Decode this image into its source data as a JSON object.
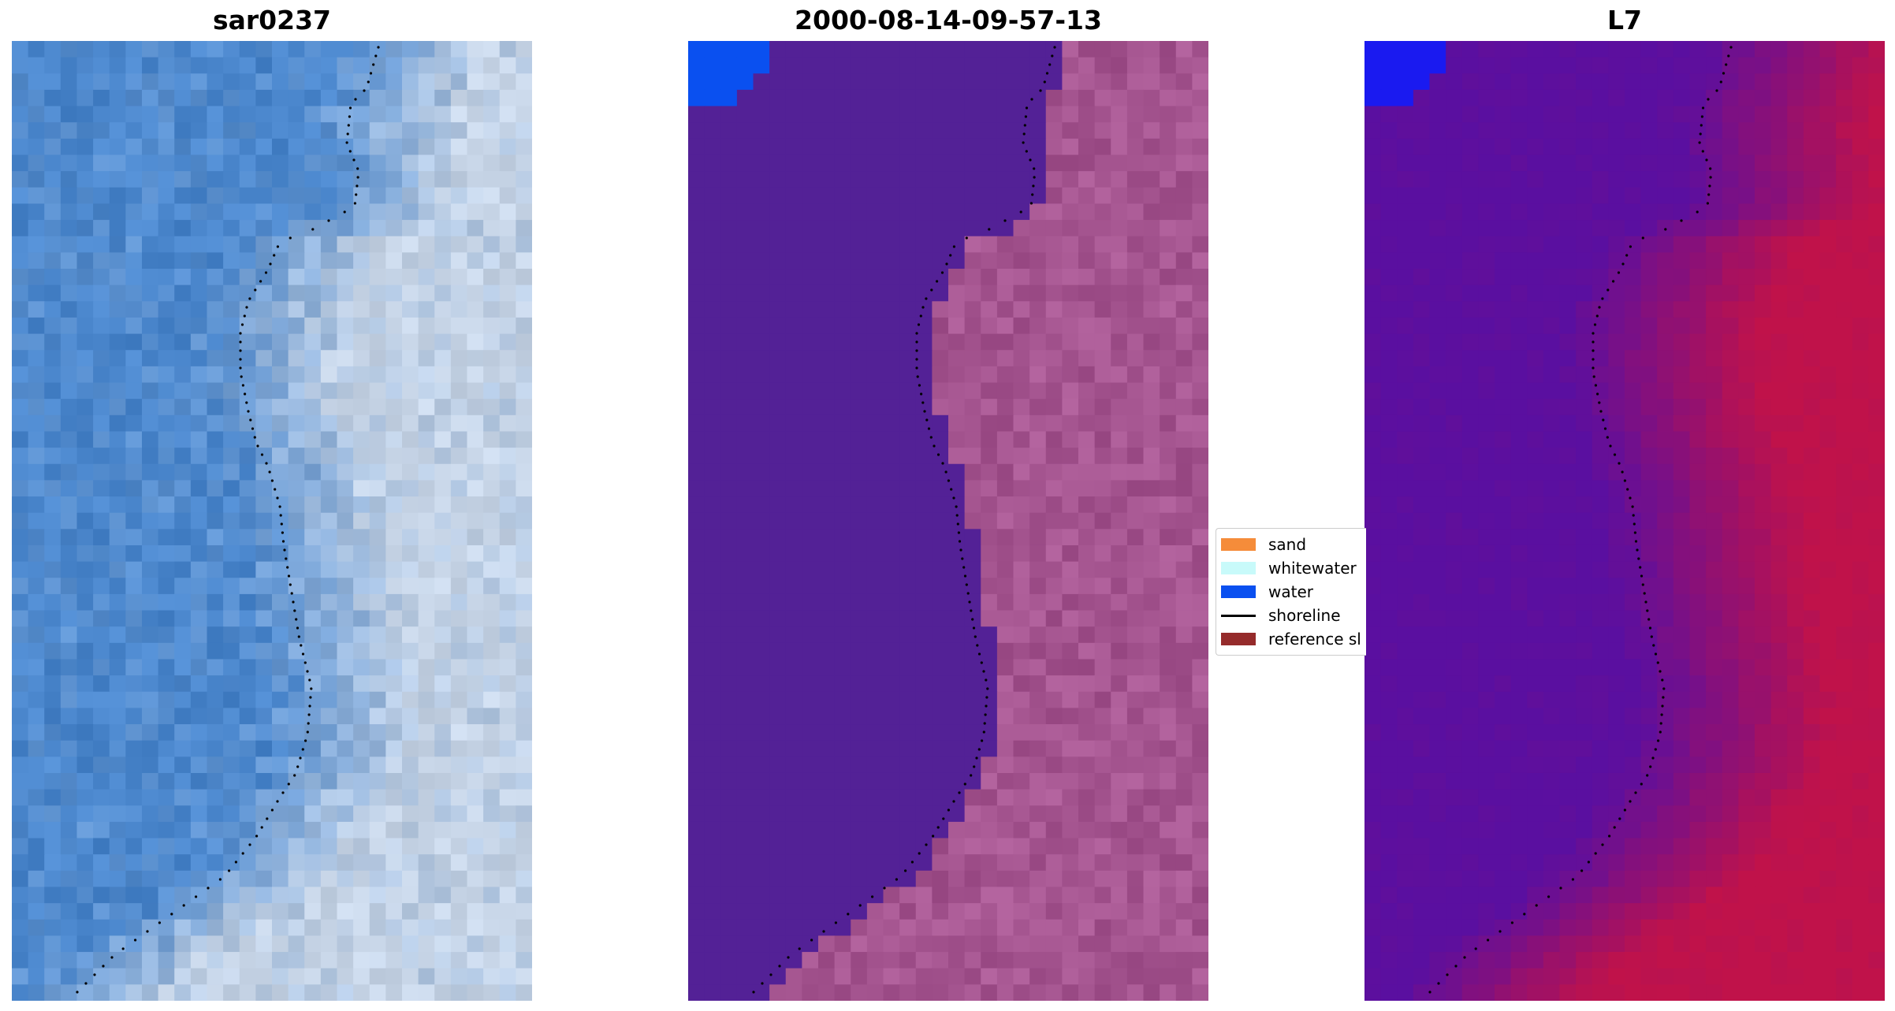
{
  "panels": [
    {
      "id": "rgb",
      "title": "sar0237"
    },
    {
      "id": "classified",
      "title": "2000-08-14-09-57-13"
    },
    {
      "id": "mndwi",
      "title": "L7"
    }
  ],
  "legend": {
    "items": [
      {
        "label": "sand",
        "color": "#f58c3a",
        "kind": "patch"
      },
      {
        "label": "whitewater",
        "color": "#c8fafa",
        "kind": "patch"
      },
      {
        "label": "water",
        "color": "#0a50f0",
        "kind": "patch"
      },
      {
        "label": "shoreline",
        "color": "#000000",
        "kind": "line"
      },
      {
        "label": "reference sl",
        "color": "#952b2b",
        "kind": "patch"
      }
    ]
  },
  "colors": {
    "rgb_water": "#4a86cc",
    "rgb_land": "#c6d4e6",
    "class_water": "#532196",
    "class_land": "#a55590",
    "class_water_corner": "#0a50f0",
    "ndwi_water": "#5a0fa0",
    "ndwi_land": "#c0124a",
    "ndwi_corner": "#1a1af0",
    "shoreline": "#000000"
  }
}
